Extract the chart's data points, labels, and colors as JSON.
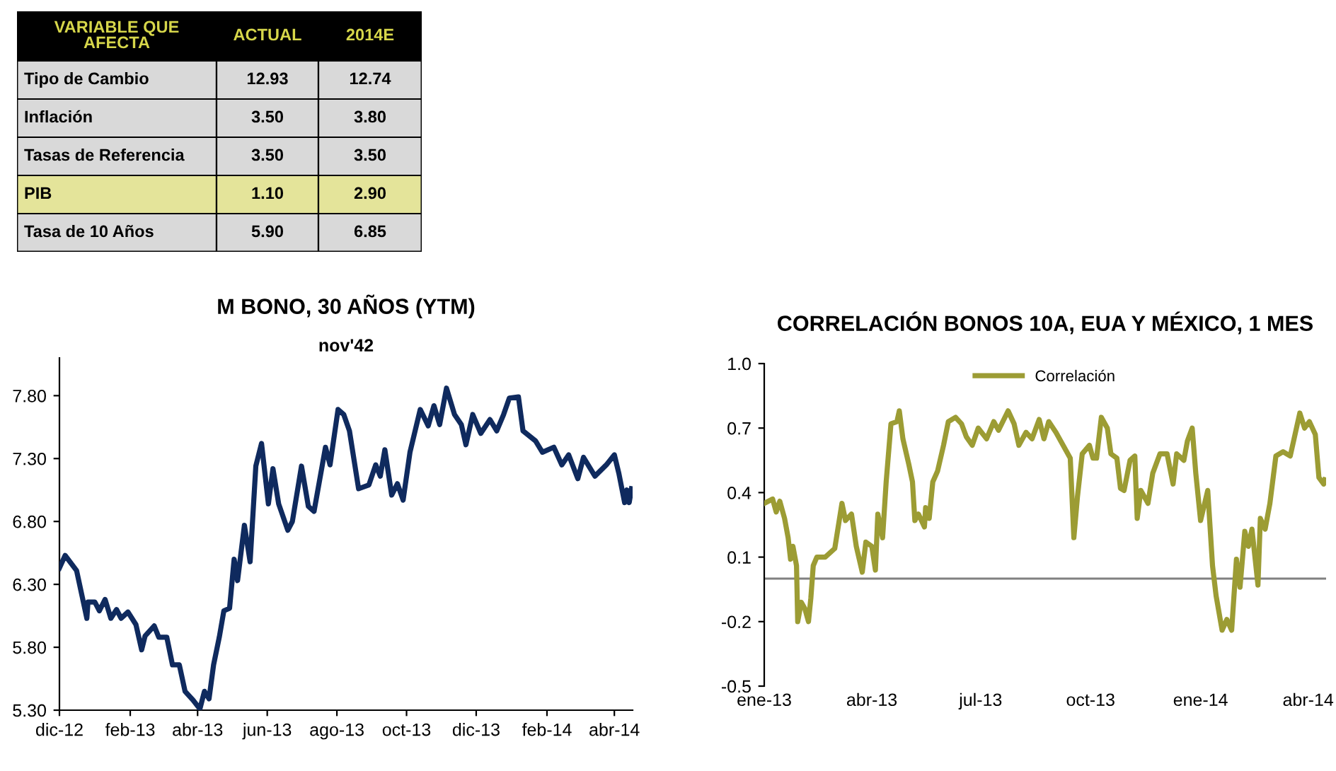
{
  "chart_data": [
    {
      "type": "heatmap",
      "ylabel": "VARIABLE QUE AFECTA",
      "categories": [
        "ACTUAL",
        "2014E"
      ],
      "y_categories": [
        "Tipo de Cambio",
        "Inflación",
        "Tasas de Referencia",
        "PIB",
        "Tasa de 10 Años"
      ],
      "cells": [
        [
          12.93,
          12.74
        ],
        [
          3.5,
          3.8
        ],
        [
          3.5,
          3.5
        ],
        [
          1.1,
          2.9
        ],
        [
          5.9,
          6.85
        ]
      ],
      "cell_labels": [
        [
          "12.93",
          "12.74"
        ],
        [
          "3.50",
          "3.80"
        ],
        [
          "3.50",
          "3.50"
        ],
        [
          "1.10",
          "2.90"
        ],
        [
          "5.90",
          "6.85"
        ]
      ],
      "colors": [
        "#d9d9d9",
        "#d9d9d9",
        "#d9d9d9",
        "#e4e49a",
        "#d9d9d9"
      ]
    },
    {
      "type": "line",
      "title": "M BONO, 30 AÑOS (YTM)",
      "subtitle": "nov'42",
      "x": [
        "2012-12-01",
        "2012-12-06",
        "2012-12-16",
        "2012-12-21",
        "2012-12-25",
        "2012-12-26",
        "2013-01-01",
        "2013-01-05",
        "2013-01-10",
        "2013-01-15",
        "2013-01-20",
        "2013-01-24",
        "2013-01-30",
        "2013-02-06",
        "2013-02-11",
        "2013-02-14",
        "2013-02-22",
        "2013-02-26",
        "2013-03-05",
        "2013-03-10",
        "2013-03-16",
        "2013-03-21",
        "2013-03-28",
        "2013-04-03",
        "2013-04-07",
        "2013-04-11",
        "2013-04-15",
        "2013-04-20",
        "2013-04-24",
        "2013-04-29",
        "2013-05-03",
        "2013-05-06",
        "2013-05-12",
        "2013-05-17",
        "2013-05-22",
        "2013-05-27",
        "2013-06-02",
        "2013-06-06",
        "2013-06-11",
        "2013-06-19",
        "2013-06-23",
        "2013-07-01",
        "2013-07-07",
        "2013-07-12",
        "2013-07-22",
        "2013-07-26",
        "2013-08-02",
        "2013-08-07",
        "2013-08-12",
        "2013-08-20",
        "2013-08-29",
        "2013-09-04",
        "2013-09-08",
        "2013-09-12",
        "2013-09-18",
        "2013-09-23",
        "2013-09-28",
        "2013-10-04",
        "2013-10-13",
        "2013-10-20",
        "2013-10-25",
        "2013-10-30",
        "2013-11-05",
        "2013-11-12",
        "2013-11-18",
        "2013-11-22",
        "2013-11-28",
        "2013-12-05",
        "2013-12-13",
        "2013-12-19",
        "2013-12-25",
        "2013-12-30",
        "2014-01-07",
        "2014-01-11",
        "2014-01-22",
        "2014-01-28",
        "2014-02-07",
        "2014-02-14",
        "2014-02-20",
        "2014-02-28",
        "2014-03-05",
        "2014-03-15",
        "2014-03-25",
        "2014-04-01",
        "2014-04-05",
        "2014-04-10",
        "2014-04-12",
        "2014-04-14",
        "2014-04-16"
      ],
      "series": [
        {
          "color": "#0f2a5e",
          "values": [
            6.43,
            6.53,
            6.41,
            6.2,
            6.03,
            6.16,
            6.16,
            6.09,
            6.18,
            6.03,
            6.1,
            6.03,
            6.08,
            5.98,
            5.78,
            5.89,
            5.97,
            5.88,
            5.88,
            5.66,
            5.66,
            5.45,
            5.38,
            5.31,
            5.45,
            5.39,
            5.66,
            5.88,
            6.09,
            6.11,
            6.5,
            6.33,
            6.77,
            6.48,
            7.24,
            7.42,
            6.94,
            7.22,
            6.94,
            6.73,
            6.8,
            7.24,
            6.92,
            6.88,
            7.39,
            7.25,
            7.69,
            7.65,
            7.52,
            7.06,
            7.09,
            7.25,
            7.16,
            7.37,
            7.01,
            7.1,
            6.97,
            7.35,
            7.69,
            7.56,
            7.72,
            7.57,
            7.86,
            7.65,
            7.57,
            7.41,
            7.65,
            7.5,
            7.61,
            7.52,
            7.65,
            7.78,
            7.79,
            7.52,
            7.44,
            7.35,
            7.39,
            7.25,
            7.33,
            7.14,
            7.31,
            7.16,
            7.25,
            7.33,
            7.18,
            6.95,
            7.05,
            6.95,
            7.06
          ]
        }
      ],
      "xlim": [
        "2012-12-01",
        "2014-04-17"
      ],
      "xticks": [
        {
          "value": "2012-12-01",
          "label": "dic-12"
        },
        {
          "value": "2013-02-01",
          "label": "feb-13"
        },
        {
          "value": "2013-04-01",
          "label": "abr-13"
        },
        {
          "value": "2013-06-01",
          "label": "jun-13"
        },
        {
          "value": "2013-08-01",
          "label": "ago-13"
        },
        {
          "value": "2013-10-01",
          "label": "oct-13"
        },
        {
          "value": "2013-12-01",
          "label": "dic-13"
        },
        {
          "value": "2014-02-01",
          "label": "feb-14"
        },
        {
          "value": "2014-04-01",
          "label": "abr-14"
        }
      ],
      "ylim": [
        5.3,
        8.1
      ],
      "yticks": [
        {
          "value": 5.3,
          "label": "5.30"
        },
        {
          "value": 5.8,
          "label": "5.80"
        },
        {
          "value": 6.3,
          "label": "6.30"
        },
        {
          "value": 6.8,
          "label": "6.80"
        },
        {
          "value": 7.3,
          "label": "7.30"
        },
        {
          "value": 7.8,
          "label": "7.80"
        }
      ],
      "grid": false,
      "legend": false,
      "marker": "none",
      "line_style": "solid"
    },
    {
      "type": "line",
      "title": "CORRELACIÓN BONOS 10A, EUA Y MÉXICO, 1 MES",
      "x": [
        "2013-01-01",
        "2013-01-08",
        "2013-01-11",
        "2013-01-14",
        "2013-01-18",
        "2013-01-21",
        "2013-01-23",
        "2013-01-25",
        "2013-01-28",
        "2013-01-29",
        "2013-02-01",
        "2013-02-04",
        "2013-02-07",
        "2013-02-09",
        "2013-02-11",
        "2013-02-14",
        "2013-02-21",
        "2013-03-01",
        "2013-03-07",
        "2013-03-10",
        "2013-03-15",
        "2013-03-19",
        "2013-03-24",
        "2013-03-27",
        "2013-04-01",
        "2013-04-04",
        "2013-04-06",
        "2013-04-10",
        "2013-04-13",
        "2013-04-17",
        "2013-04-22",
        "2013-04-24",
        "2013-04-27",
        "2013-05-02",
        "2013-05-05",
        "2013-05-07",
        "2013-05-10",
        "2013-05-15",
        "2013-05-16",
        "2013-05-19",
        "2013-05-22",
        "2013-05-26",
        "2013-05-31",
        "2013-06-04",
        "2013-06-10",
        "2013-06-15",
        "2013-06-19",
        "2013-06-24",
        "2013-06-29",
        "2013-07-06",
        "2013-07-12",
        "2013-07-16",
        "2013-07-24",
        "2013-07-29",
        "2013-08-02",
        "2013-08-08",
        "2013-08-13",
        "2013-08-19",
        "2013-08-23",
        "2013-08-27",
        "2013-09-02",
        "2013-09-08",
        "2013-09-14",
        "2013-09-17",
        "2013-09-20",
        "2013-09-24",
        "2013-09-30",
        "2013-10-03",
        "2013-10-06",
        "2013-10-10",
        "2013-10-15",
        "2013-10-18",
        "2013-10-23",
        "2013-10-26",
        "2013-10-29",
        "2013-11-03",
        "2013-11-07",
        "2013-11-09",
        "2013-11-12",
        "2013-11-18",
        "2013-11-22",
        "2013-11-28",
        "2013-12-04",
        "2013-12-09",
        "2013-12-12",
        "2013-12-18",
        "2013-12-21",
        "2013-12-25",
        "2013-12-28",
        "2014-01-01",
        "2014-01-07",
        "2014-01-11",
        "2014-01-14",
        "2014-01-19",
        "2014-01-23",
        "2014-01-27",
        "2014-01-31",
        "2014-02-03",
        "2014-02-07",
        "2014-02-10",
        "2014-02-13",
        "2014-02-18",
        "2014-02-20",
        "2014-02-24",
        "2014-02-28",
        "2014-03-05",
        "2014-03-11",
        "2014-03-17",
        "2014-03-25",
        "2014-03-29",
        "2014-04-02",
        "2014-04-07",
        "2014-04-10",
        "2014-04-14",
        "2014-04-15"
      ],
      "series": [
        {
          "name": "Correlación",
          "color": "#9c9c34",
          "values": [
            0.35,
            0.37,
            0.31,
            0.36,
            0.28,
            0.19,
            0.09,
            0.15,
            0.06,
            -0.2,
            -0.11,
            -0.14,
            -0.2,
            -0.09,
            0.06,
            0.1,
            0.1,
            0.14,
            0.35,
            0.27,
            0.3,
            0.15,
            0.03,
            0.17,
            0.15,
            0.04,
            0.3,
            0.19,
            0.45,
            0.72,
            0.73,
            0.78,
            0.65,
            0.53,
            0.45,
            0.27,
            0.3,
            0.24,
            0.33,
            0.28,
            0.45,
            0.5,
            0.62,
            0.73,
            0.75,
            0.72,
            0.66,
            0.62,
            0.7,
            0.65,
            0.73,
            0.69,
            0.78,
            0.72,
            0.62,
            0.68,
            0.65,
            0.74,
            0.65,
            0.73,
            0.68,
            0.62,
            0.56,
            0.19,
            0.38,
            0.58,
            0.62,
            0.56,
            0.56,
            0.75,
            0.7,
            0.58,
            0.56,
            0.42,
            0.41,
            0.55,
            0.57,
            0.28,
            0.41,
            0.35,
            0.49,
            0.58,
            0.58,
            0.44,
            0.58,
            0.55,
            0.64,
            0.7,
            0.49,
            0.27,
            0.41,
            0.06,
            -0.08,
            -0.24,
            -0.19,
            -0.24,
            0.09,
            -0.04,
            0.22,
            0.15,
            0.23,
            -0.03,
            0.28,
            0.23,
            0.35,
            0.57,
            0.59,
            0.57,
            0.77,
            0.7,
            0.73,
            0.67,
            0.47,
            0.44,
            0.46
          ]
        }
      ],
      "xlim": [
        "2013-01-01",
        "2014-04-16"
      ],
      "xticks": [
        {
          "value": "2013-01-01",
          "label": "ene-13"
        },
        {
          "value": "2013-04-01",
          "label": "abr-13"
        },
        {
          "value": "2013-07-01",
          "label": "jul-13"
        },
        {
          "value": "2013-10-01",
          "label": "oct-13"
        },
        {
          "value": "2014-01-01",
          "label": "ene-14"
        },
        {
          "value": "2014-04-01",
          "label": "abr-14"
        }
      ],
      "ylim": [
        -0.5,
        1.0
      ],
      "yticks": [
        -0.5,
        -0.2,
        0.1,
        0.4,
        0.7,
        {
          "value": 1.0,
          "label": "1.0"
        }
      ],
      "ref_lines": [
        {
          "axis": "y",
          "value": 0,
          "color": "#808080"
        }
      ],
      "grid": false,
      "legend": "top",
      "marker": "none",
      "line_style": "solid"
    }
  ]
}
